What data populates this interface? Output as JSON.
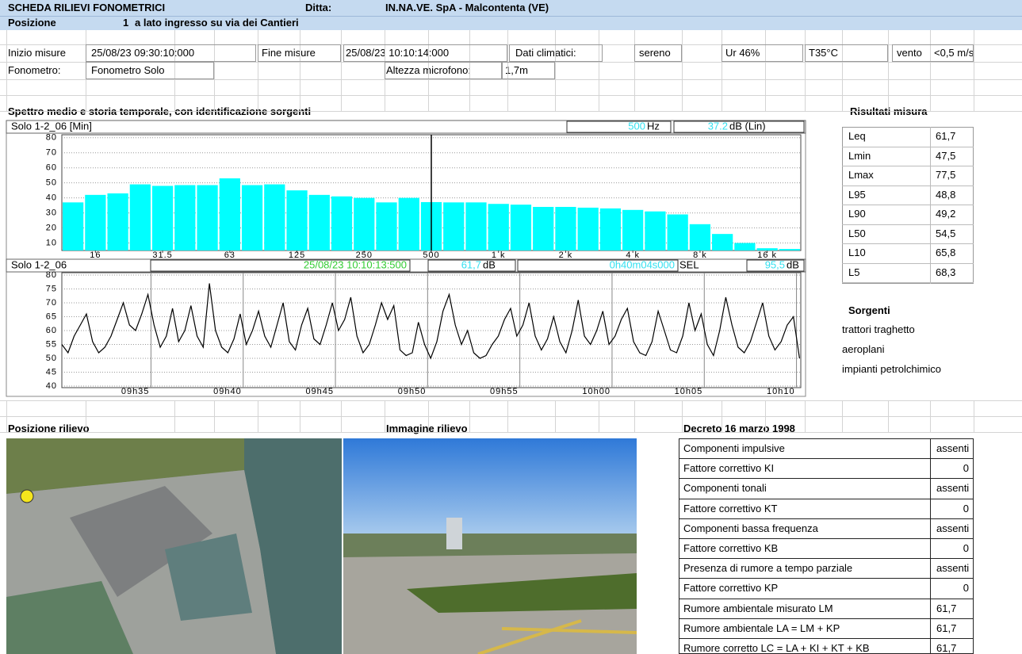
{
  "header": {
    "title": "SCHEDA RILIEVI FONOMETRICI",
    "company_label": "Ditta:",
    "company": "IN.NA.VE. SpA - Malcontenta (VE)",
    "position_label": "Posizione",
    "position_number": "1",
    "position_description": "a lato ingresso su via dei Cantieri"
  },
  "info": {
    "start_label": "Inizio misure",
    "start": "25/08/23 09:30:10:000",
    "end_label": "Fine misure",
    "end": "25/08/23 10:10:14:000",
    "climate_label": "Dati climatici:",
    "sky": "sereno",
    "humidity": "Ur 46%",
    "temperature": "T35°C",
    "wind_label": "vento",
    "wind": "<0,5 m/s",
    "meter_label": "Fonometro:",
    "meter": "Fonometro Solo",
    "mic_height_label": "Altezza microfono:",
    "mic_height": "1,7m"
  },
  "section_title": "Spettro medio e storia temporale, con identificazione sorgenti",
  "chart_data": [
    {
      "type": "bar",
      "title": "Solo 1-2_06 [Min]",
      "cursor": {
        "frequency": "500",
        "frequency_unit": "Hz",
        "level": 37.2,
        "level_unit": "dB (Lin)"
      },
      "categories": [
        null,
        "16",
        null,
        null,
        "31.5",
        null,
        null,
        "63",
        null,
        null,
        "125",
        null,
        null,
        "250",
        null,
        null,
        "500",
        null,
        null,
        "1 k",
        null,
        null,
        "2 k",
        null,
        null,
        "4 k",
        null,
        null,
        "8 k",
        null,
        null,
        "16 k",
        null
      ],
      "values": [
        37,
        42,
        43,
        49,
        48,
        48.5,
        48.5,
        53,
        48.5,
        49,
        45,
        42,
        41,
        40,
        37,
        40,
        37.2,
        37,
        37,
        36,
        35.5,
        34,
        34,
        33.5,
        33,
        32,
        31,
        29,
        22.5,
        16,
        10,
        6.5,
        6
      ],
      "color": "#00ffff",
      "ylim": [
        5,
        82
      ],
      "yticks": [
        10,
        20,
        30,
        40,
        50,
        60,
        70,
        80
      ],
      "grid": true
    },
    {
      "type": "line",
      "title": "Solo 1-2_06",
      "cursor": {
        "time": "25/08/23 10:10:13:500",
        "leq": "61,7",
        "leq_unit": "dB",
        "duration": "0h40m04s000",
        "sel_label": "SEL",
        "sel": "95,5",
        "sel_unit": "dB"
      },
      "x": [
        "09:30:10",
        "09:30:30",
        "09:30:50",
        "09:31:10",
        "09:31:30",
        "09:31:50",
        "09:32:10",
        "09:32:30",
        "09:32:50",
        "09:33:10",
        "09:33:30",
        "09:33:50",
        "09:34:10",
        "09:34:30",
        "09:34:50",
        "09:35:10",
        "09:35:30",
        "09:35:50",
        "09:36:10",
        "09:36:30",
        "09:36:50",
        "09:37:10",
        "09:37:30",
        "09:37:50",
        "09:38:10",
        "09:38:30",
        "09:38:50",
        "09:39:10",
        "09:39:30",
        "09:39:50",
        "09:40:10",
        "09:40:30",
        "09:40:50",
        "09:41:10",
        "09:41:30",
        "09:41:50",
        "09:42:10",
        "09:42:30",
        "09:42:50",
        "09:43:10",
        "09:43:30",
        "09:43:50",
        "09:44:10",
        "09:44:30",
        "09:44:50",
        "09:45:10",
        "09:45:30",
        "09:45:50",
        "09:46:10",
        "09:46:30",
        "09:46:50",
        "09:47:10",
        "09:47:30",
        "09:47:50",
        "09:48:10",
        "09:48:30",
        "09:48:50",
        "09:49:10",
        "09:49:30",
        "09:49:50",
        "09:50:10",
        "09:50:30",
        "09:50:50",
        "09:51:10",
        "09:51:30",
        "09:51:50",
        "09:52:10",
        "09:52:30",
        "09:52:50",
        "09:53:10",
        "09:53:30",
        "09:53:50",
        "09:54:10",
        "09:54:30",
        "09:54:50",
        "09:55:10",
        "09:55:30",
        "09:55:50",
        "09:56:10",
        "09:56:30",
        "09:56:50",
        "09:57:10",
        "09:57:30",
        "09:57:50",
        "09:58:10",
        "09:58:30",
        "09:58:50",
        "09:59:10",
        "09:59:30",
        "09:59:50",
        "10:00:10",
        "10:00:30",
        "10:00:50",
        "10:01:10",
        "10:01:30",
        "10:01:50",
        "10:02:10",
        "10:02:30",
        "10:02:50",
        "10:03:10",
        "10:03:30",
        "10:03:50",
        "10:04:10",
        "10:04:30",
        "10:04:50",
        "10:05:10",
        "10:05:30",
        "10:05:50",
        "10:06:10",
        "10:06:30",
        "10:06:50",
        "10:07:10",
        "10:07:30",
        "10:07:50",
        "10:08:10",
        "10:08:30",
        "10:08:50",
        "10:09:10",
        "10:09:30",
        "10:09:50",
        "10:10:10"
      ],
      "values": [
        55,
        52,
        58,
        62,
        66,
        56,
        52,
        54,
        58,
        64,
        70,
        62,
        60,
        66,
        73,
        62,
        54,
        58,
        68,
        56,
        60,
        69,
        58,
        54,
        77,
        60,
        54,
        52,
        57,
        66,
        55,
        60,
        67,
        58,
        54,
        62,
        70,
        56,
        53,
        62,
        68,
        57,
        55,
        62,
        70,
        60,
        64,
        72,
        58,
        52,
        55,
        62,
        70,
        64,
        69,
        53,
        51,
        52,
        63,
        55,
        50,
        56,
        67,
        73,
        62,
        55,
        60,
        52,
        50,
        51,
        55,
        58,
        64,
        68,
        58,
        62,
        70,
        58,
        53,
        57,
        65,
        56,
        52,
        60,
        71,
        58,
        55,
        60,
        67,
        55,
        58,
        64,
        68,
        56,
        52,
        51,
        56,
        67,
        60,
        53,
        52,
        58,
        70,
        60,
        66,
        55,
        51,
        60,
        72,
        62,
        54,
        52,
        56,
        63,
        70,
        58,
        53,
        56,
        62,
        65,
        50
      ],
      "color": "#000000",
      "xlim": [
        "09:30:10",
        "10:10:14"
      ],
      "xticks": [
        {
          "value": "09:35",
          "label": "09h35"
        },
        {
          "value": "09:40",
          "label": "09h40"
        },
        {
          "value": "09:45",
          "label": "09h45"
        },
        {
          "value": "09:50",
          "label": "09h50"
        },
        {
          "value": "09:55",
          "label": "09h55"
        },
        {
          "value": "10:00",
          "label": "10h00"
        },
        {
          "value": "10:05",
          "label": "10h05"
        },
        {
          "value": "10:10",
          "label": "10h10"
        }
      ],
      "ylim": [
        40,
        80
      ],
      "yticks": [
        40,
        45,
        50,
        55,
        60,
        65,
        70,
        75,
        80
      ],
      "grid": true
    }
  ],
  "results": {
    "title": "Risultati misura",
    "rows": [
      [
        "Leq",
        "61,7"
      ],
      [
        "Lmin",
        "47,5"
      ],
      [
        "Lmax",
        "77,5"
      ],
      [
        "L95",
        "48,8"
      ],
      [
        "L90",
        "49,2"
      ],
      [
        "L50",
        "54,5"
      ],
      [
        "L10",
        "65,8"
      ],
      [
        "L5",
        "68,3"
      ]
    ]
  },
  "sources": {
    "title": "Sorgenti",
    "items": [
      "trattori traghetto",
      "aeroplani",
      "impianti petrolchimico"
    ]
  },
  "position_title": "Posizione rilievo",
  "image_title": "Immagine rilievo",
  "decree": {
    "title": "Decreto 16 marzo 1998",
    "rows": [
      [
        "Componenti impulsive",
        "assenti"
      ],
      [
        "Fattore correttivo KI",
        "0"
      ],
      [
        "Componenti tonali",
        "assenti"
      ],
      [
        "Fattore correttivo KT",
        "0"
      ],
      [
        "Componenti bassa frequenza",
        "assenti"
      ],
      [
        "Fattore correttivo KB",
        "0"
      ],
      [
        "Presenza di rumore a tempo parziale",
        "assenti"
      ],
      [
        "Fattore correttivo KP",
        "0"
      ],
      [
        "Rumore ambientale misurato LM",
        "61,7"
      ],
      [
        "Rumore ambientale LA = LM + KP",
        "61,7"
      ],
      [
        "Rumore corretto  LC = LA + KI + KT + KB",
        "61,7"
      ]
    ]
  }
}
